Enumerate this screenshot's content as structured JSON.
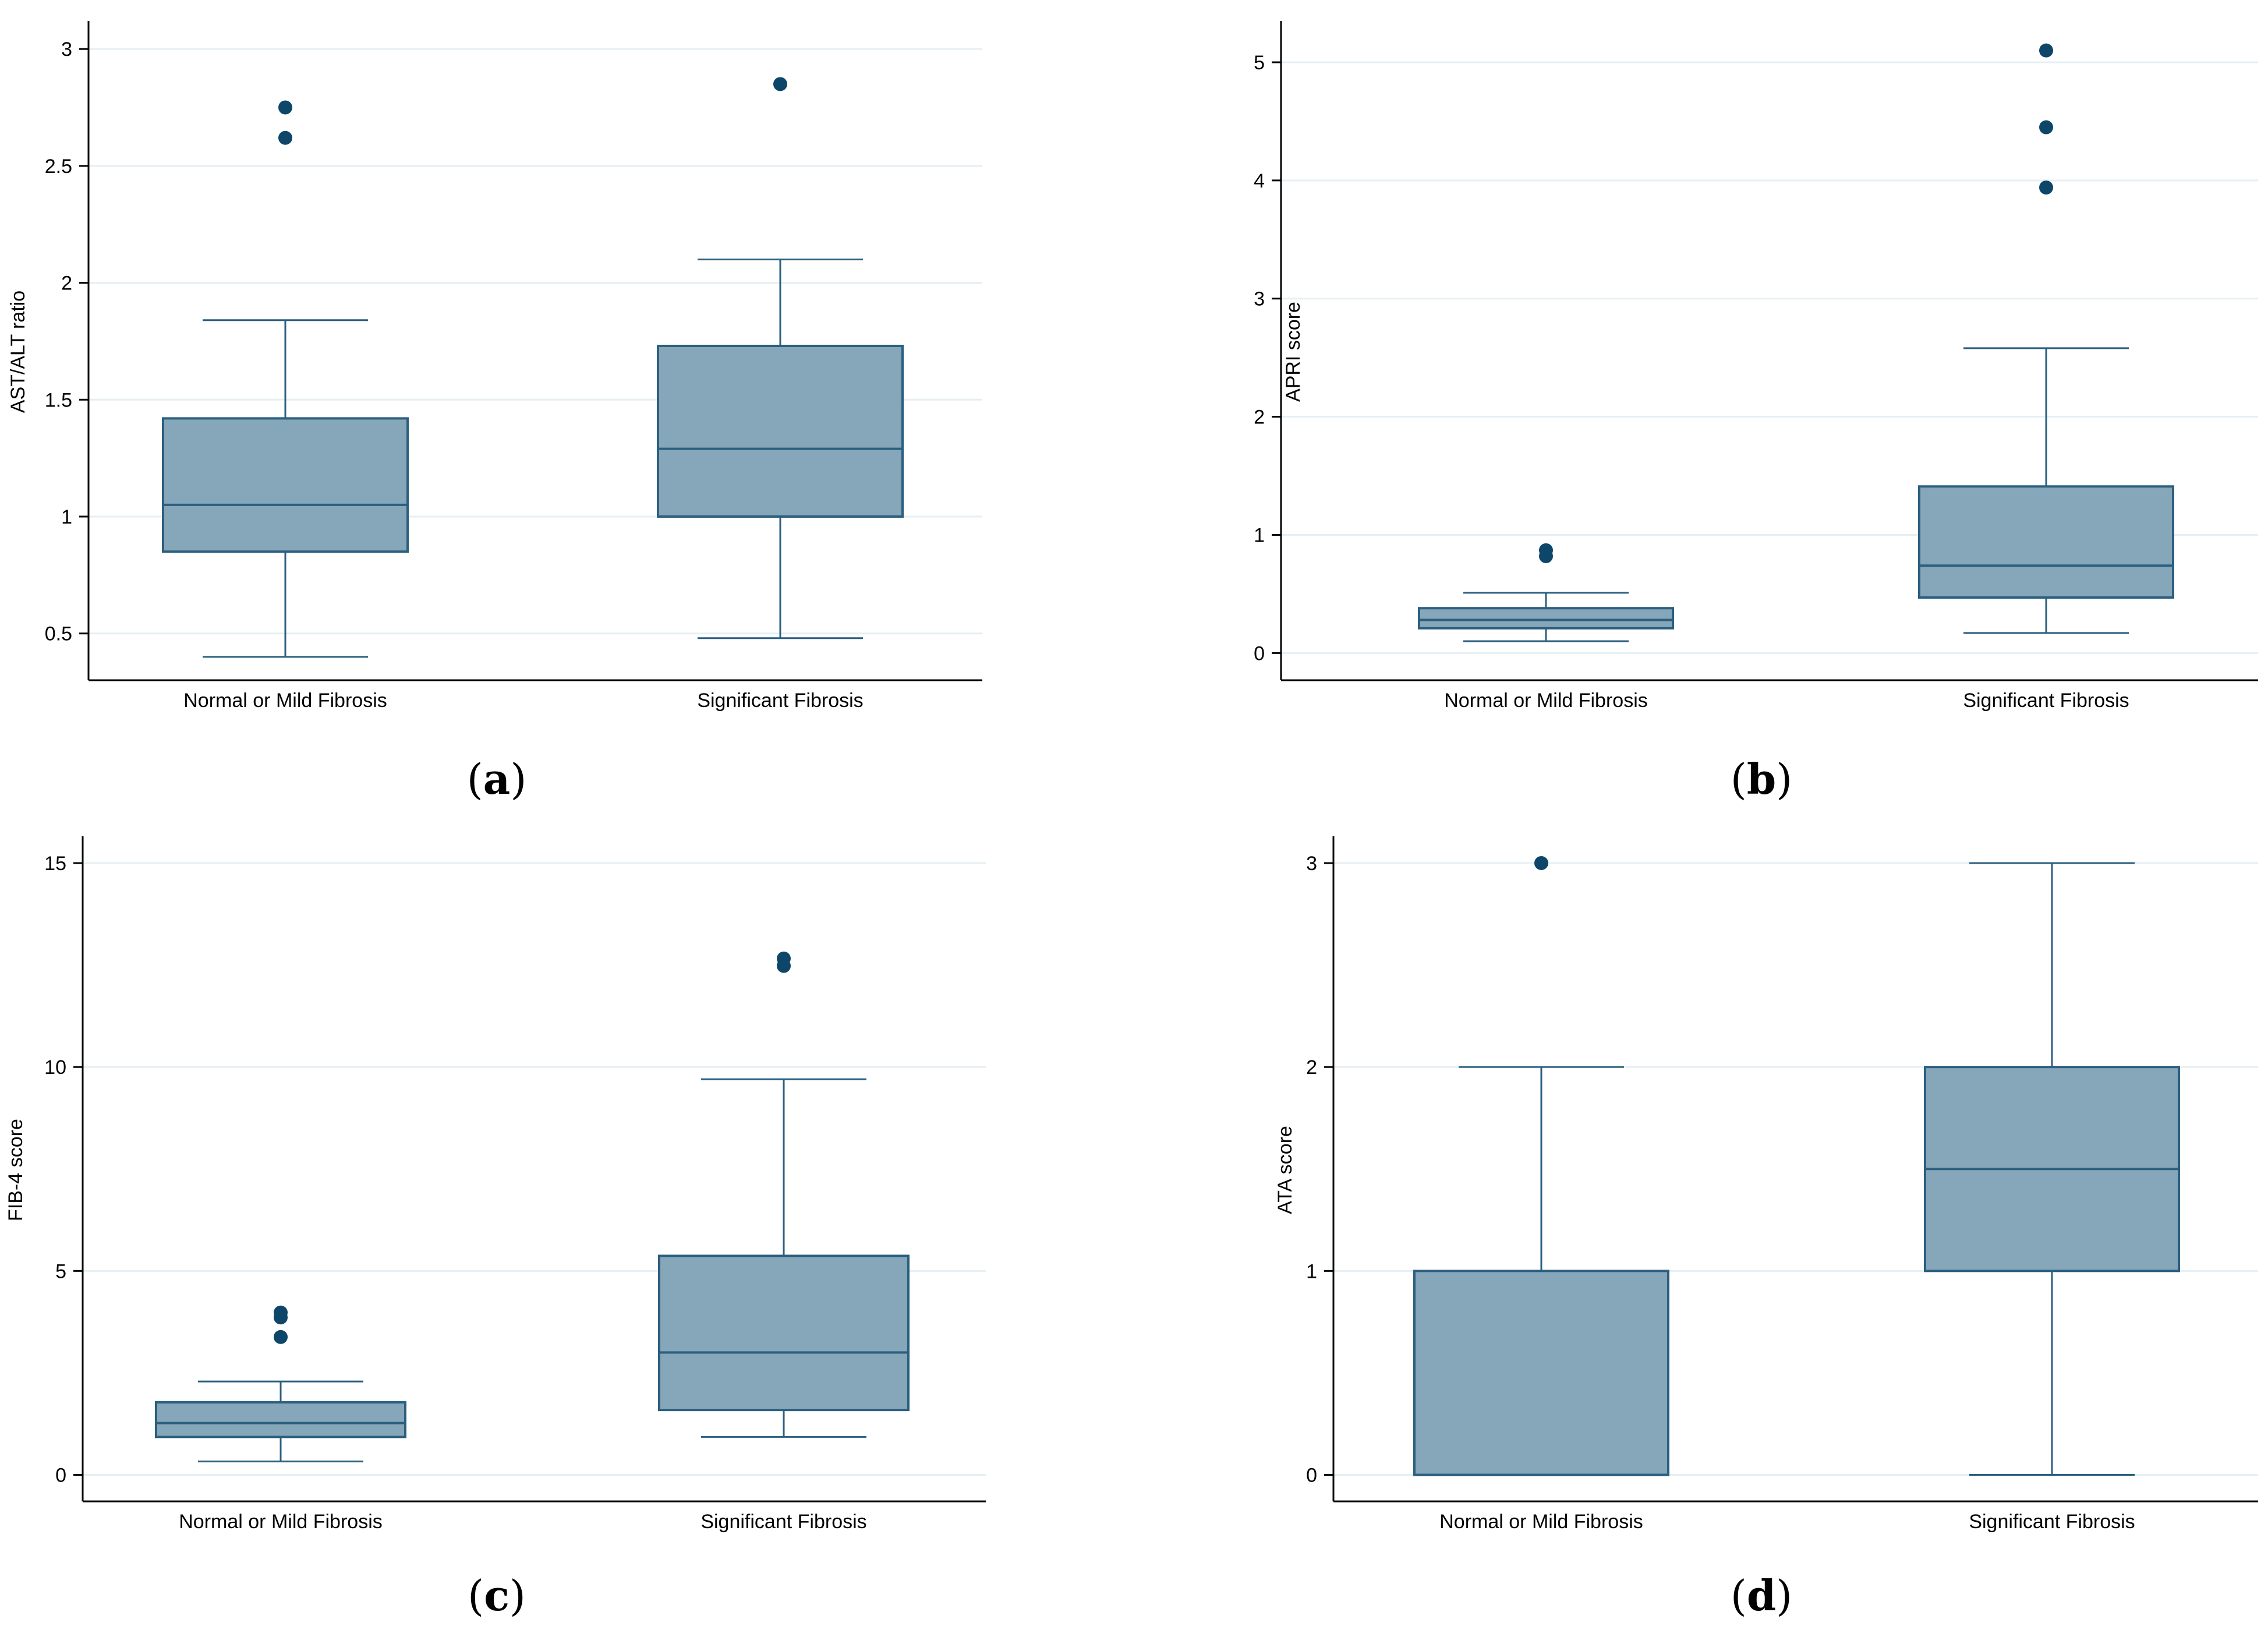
{
  "figure": {
    "colors": {
      "box_fill": "#86a6ba",
      "line": "#2b5f7f",
      "outlier": "#0d4669",
      "grid": "#e6eff3",
      "axis": "#000000"
    },
    "panels": [
      {
        "caption_letter": "a",
        "chart_data": {
          "type": "box",
          "ylabel": "AST/ALT ratio",
          "categories": [
            "Normal or Mild Fibrosis",
            "Significant Fibrosis"
          ],
          "ylim": [
            0.3,
            3.11
          ],
          "yticks": [
            0.5,
            1,
            1.5,
            2,
            2.5,
            3
          ],
          "ytick_labels": [
            "0.5",
            "1",
            "1.5",
            "2",
            "2.5",
            "3"
          ],
          "boxes": [
            {
              "min": 0.4,
              "q1": 0.85,
              "median": 1.05,
              "q3": 1.42,
              "max": 1.84,
              "outliers": [
                2.62,
                2.75
              ]
            },
            {
              "min": 0.48,
              "q1": 1.0,
              "median": 1.29,
              "q3": 1.73,
              "max": 2.1,
              "outliers": [
                2.85
              ]
            }
          ]
        }
      },
      {
        "caption_letter": "b",
        "chart_data": {
          "type": "box",
          "ylabel": "APRI score",
          "categories": [
            "Normal or Mild Fibrosis",
            "Significant Fibrosis"
          ],
          "ylim": [
            -0.23,
            5.33
          ],
          "yticks": [
            0,
            1,
            2,
            3,
            4,
            5
          ],
          "ytick_labels": [
            "0",
            "1",
            "2",
            "3",
            "4",
            "5"
          ],
          "boxes": [
            {
              "min": 0.1,
              "q1": 0.21,
              "median": 0.28,
              "q3": 0.38,
              "max": 0.51,
              "outliers": [
                0.82,
                0.87
              ]
            },
            {
              "min": 0.17,
              "q1": 0.47,
              "median": 0.74,
              "q3": 1.41,
              "max": 2.58,
              "outliers": [
                3.94,
                4.45,
                5.1
              ]
            }
          ]
        }
      },
      {
        "caption_letter": "c",
        "chart_data": {
          "type": "box",
          "ylabel": "FIB-4 score",
          "categories": [
            "Normal or Mild Fibrosis",
            "Significant Fibrosis"
          ],
          "ylim": [
            -0.65,
            15.6
          ],
          "yticks": [
            0,
            5,
            10,
            15
          ],
          "ytick_labels": [
            "0",
            "5",
            "10",
            "15"
          ],
          "boxes": [
            {
              "min": 0.33,
              "q1": 0.93,
              "median": 1.27,
              "q3": 1.78,
              "max": 2.29,
              "outliers": [
                3.38,
                3.86,
                3.98
              ]
            },
            {
              "min": 0.93,
              "q1": 1.59,
              "median": 3.0,
              "q3": 5.37,
              "max": 9.7,
              "outliers": [
                12.48,
                12.66
              ]
            }
          ]
        }
      },
      {
        "caption_letter": "d",
        "chart_data": {
          "type": "box",
          "ylabel": "ATA score",
          "categories": [
            "Normal or Mild Fibrosis",
            "Significant Fibrosis"
          ],
          "ylim": [
            -0.13,
            3.12
          ],
          "yticks": [
            0,
            1,
            2,
            3
          ],
          "ytick_labels": [
            "0",
            "1",
            "2",
            "3"
          ],
          "boxes": [
            {
              "min": 0,
              "q1": 0,
              "median": 0,
              "q3": 1,
              "max": 2,
              "outliers": [
                3
              ]
            },
            {
              "min": 0,
              "q1": 1,
              "median": 1.5,
              "q3": 2,
              "max": 3,
              "outliers": []
            }
          ]
        }
      }
    ]
  }
}
